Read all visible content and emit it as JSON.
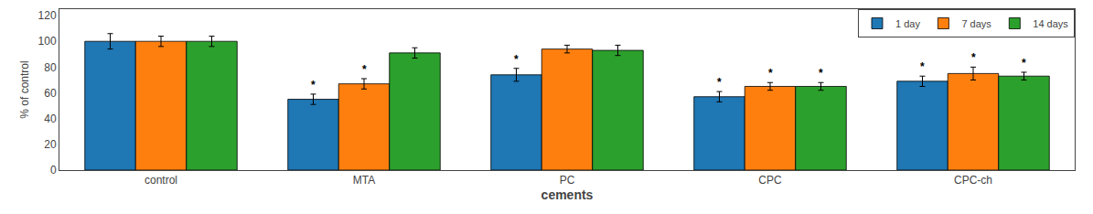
{
  "chart_data": {
    "type": "bar",
    "xlabel": "cements",
    "ylabel": "% of control",
    "categories": [
      "control",
      "MTA",
      "PC",
      "CPC",
      "CPC-ch"
    ],
    "series": [
      {
        "name": "1 day",
        "values": [
          100,
          55,
          74,
          57,
          69
        ],
        "errors": [
          6,
          4,
          5,
          4,
          4
        ],
        "annotations": [
          null,
          "*",
          "*",
          "*",
          "*"
        ]
      },
      {
        "name": "7 days",
        "values": [
          100,
          67,
          94,
          65,
          75
        ],
        "errors": [
          4,
          4,
          3,
          3,
          5
        ],
        "annotations": [
          null,
          "*",
          null,
          "*",
          "*"
        ]
      },
      {
        "name": "14 days",
        "values": [
          100,
          91,
          93,
          65,
          73
        ],
        "errors": [
          4,
          4,
          4,
          3,
          3
        ],
        "annotations": [
          null,
          null,
          null,
          "*",
          "*"
        ]
      }
    ],
    "ylim": [
      0,
      125
    ],
    "yticks": [
      0,
      20,
      40,
      60,
      80,
      100,
      120
    ],
    "grid": false,
    "legend": "upper right"
  }
}
